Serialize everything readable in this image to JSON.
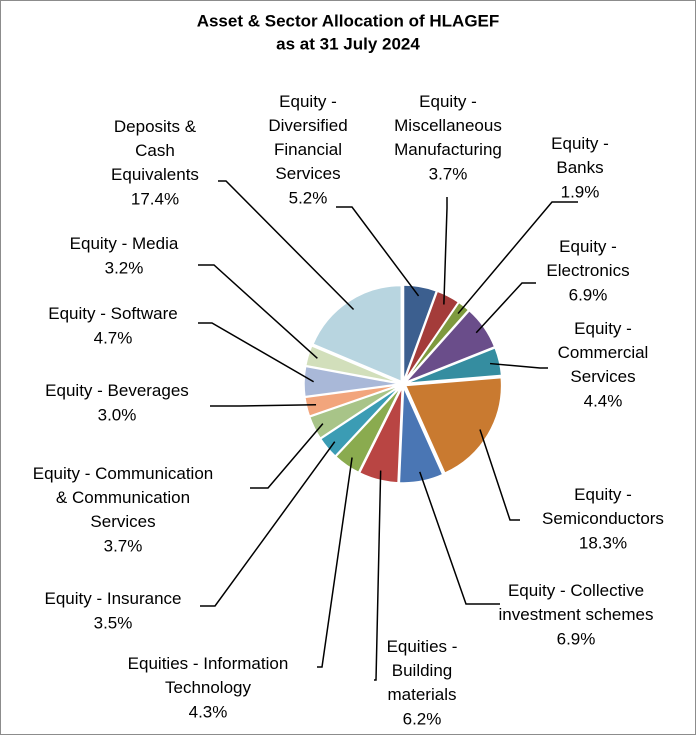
{
  "chart_data": {
    "type": "pie",
    "title": "Asset & Sector Allocation of HLAGEF",
    "subtitle": "as at 31 July 2024",
    "categories": [
      "Equity - Diversified Financial Services",
      "Equity - Miscellaneous Manufacturing",
      "Equity - Banks",
      "Equity - Electronics",
      "Equity - Commercial Services",
      "Equity - Semiconductors",
      "Equity - Collective investment schemes",
      "Equities - Building materials",
      "Equities - Information Technology",
      "Equity - Insurance",
      "Equity - Communication & Communication Services",
      "Equity - Beverages",
      "Equity - Software",
      "Equity - Media",
      "Deposits & Cash Equivalents"
    ],
    "values": [
      5.2,
      3.7,
      1.9,
      6.9,
      4.4,
      18.3,
      6.9,
      6.2,
      4.3,
      3.5,
      3.7,
      3.0,
      4.7,
      3.2,
      17.4
    ],
    "value_labels": [
      "5.2%",
      "3.7%",
      "1.9%",
      "6.9%",
      "4.4%",
      "18.3%",
      "6.9%",
      "6.2%",
      "4.3%",
      "3.5%",
      "3.7%",
      "3.0%",
      "4.7%",
      "3.2%",
      "17.4%"
    ],
    "colors": [
      "#3c5f8f",
      "#a43c3a",
      "#7e9a3e",
      "#6a4d8a",
      "#358da0",
      "#c97a30",
      "#4a76b4",
      "#b94543",
      "#8aab4f",
      "#3b9cb4",
      "#a8c488",
      "#f2a57c",
      "#a9b8d8",
      "#d2dfbb",
      "#b8d5e0"
    ]
  }
}
